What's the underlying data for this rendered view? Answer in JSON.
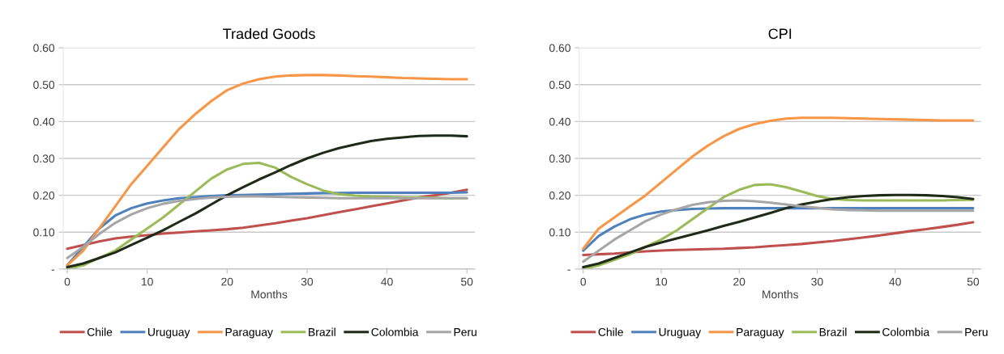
{
  "chart_data": [
    {
      "type": "line",
      "title": "Traded Goods",
      "xlabel": "Months",
      "x": [
        0,
        2,
        4,
        6,
        8,
        10,
        12,
        14,
        16,
        18,
        20,
        22,
        24,
        26,
        28,
        30,
        32,
        34,
        36,
        38,
        40,
        42,
        44,
        46,
        48,
        50
      ],
      "xlim": [
        -0.5,
        51
      ],
      "xticks": [
        0,
        10,
        20,
        30,
        40,
        50
      ],
      "ylim": [
        0,
        0.6
      ],
      "yticks": [
        {
          "value": 0,
          "label": "-"
        },
        {
          "value": 0.1,
          "label": "0.10"
        },
        {
          "value": 0.2,
          "label": "0.20"
        },
        {
          "value": 0.3,
          "label": "0.30"
        },
        {
          "value": 0.4,
          "label": "0.40"
        },
        {
          "value": 0.5,
          "label": "0.50"
        },
        {
          "value": 0.6,
          "label": "0.60"
        }
      ],
      "grid": "y",
      "legend": "bottom",
      "marker": "none",
      "line_style": "solid",
      "series": [
        {
          "name": "Chile",
          "color": "#c0504d",
          "values": [
            0.055,
            0.065,
            0.075,
            0.083,
            0.088,
            0.092,
            0.096,
            0.099,
            0.102,
            0.105,
            0.108,
            0.112,
            0.118,
            0.124,
            0.131,
            0.138,
            0.146,
            0.154,
            0.162,
            0.17,
            0.178,
            0.186,
            0.194,
            0.2,
            0.207,
            0.215
          ]
        },
        {
          "name": "Uruguay",
          "color": "#4f81bd",
          "values": [
            0.01,
            0.06,
            0.11,
            0.145,
            0.165,
            0.178,
            0.186,
            0.192,
            0.195,
            0.198,
            0.2,
            0.201,
            0.202,
            0.203,
            0.204,
            0.205,
            0.206,
            0.206,
            0.207,
            0.207,
            0.207,
            0.207,
            0.207,
            0.207,
            0.207,
            0.208
          ]
        },
        {
          "name": "Paraguay",
          "color": "#f79646",
          "values": [
            0.01,
            0.05,
            0.11,
            0.17,
            0.23,
            0.28,
            0.33,
            0.38,
            0.42,
            0.455,
            0.485,
            0.503,
            0.515,
            0.522,
            0.525,
            0.526,
            0.526,
            0.525,
            0.523,
            0.522,
            0.52,
            0.518,
            0.517,
            0.516,
            0.515,
            0.515
          ]
        },
        {
          "name": "Brazil",
          "color": "#9bbb59",
          "values": [
            0.0,
            0.01,
            0.03,
            0.05,
            0.08,
            0.11,
            0.14,
            0.175,
            0.21,
            0.245,
            0.27,
            0.285,
            0.288,
            0.275,
            0.25,
            0.23,
            0.213,
            0.203,
            0.199,
            0.197,
            0.196,
            0.195,
            0.194,
            0.193,
            0.192,
            0.192
          ]
        },
        {
          "name": "Colombia",
          "color": "#1f2a18",
          "values": [
            0.005,
            0.015,
            0.03,
            0.045,
            0.065,
            0.085,
            0.105,
            0.128,
            0.15,
            0.175,
            0.2,
            0.222,
            0.243,
            0.262,
            0.282,
            0.3,
            0.315,
            0.328,
            0.338,
            0.347,
            0.353,
            0.357,
            0.361,
            0.362,
            0.362,
            0.36
          ]
        },
        {
          "name": "Peru",
          "color": "#a6a6a6",
          "values": [
            0.03,
            0.06,
            0.095,
            0.125,
            0.148,
            0.165,
            0.177,
            0.185,
            0.19,
            0.194,
            0.196,
            0.197,
            0.197,
            0.196,
            0.195,
            0.194,
            0.193,
            0.192,
            0.192,
            0.192,
            0.192,
            0.192,
            0.192,
            0.192,
            0.192,
            0.192
          ]
        }
      ]
    },
    {
      "type": "line",
      "title": "CPI",
      "xlabel": "Months",
      "x": [
        0,
        2,
        4,
        6,
        8,
        10,
        12,
        14,
        16,
        18,
        20,
        22,
        24,
        26,
        28,
        30,
        32,
        34,
        36,
        38,
        40,
        42,
        44,
        46,
        48,
        50
      ],
      "xlim": [
        -0.5,
        51
      ],
      "xticks": [
        0,
        10,
        20,
        30,
        40,
        50
      ],
      "ylim": [
        0,
        0.6
      ],
      "yticks": [
        {
          "value": 0,
          "label": "-"
        },
        {
          "value": 0.1,
          "label": "0.10"
        },
        {
          "value": 0.2,
          "label": "0.20"
        },
        {
          "value": 0.3,
          "label": "0.30"
        },
        {
          "value": 0.4,
          "label": "0.40"
        },
        {
          "value": 0.5,
          "label": "0.50"
        },
        {
          "value": 0.6,
          "label": "0.60"
        }
      ],
      "grid": "y",
      "legend": "bottom",
      "marker": "none",
      "line_style": "solid",
      "series": [
        {
          "name": "Chile",
          "color": "#c0504d",
          "values": [
            0.038,
            0.04,
            0.042,
            0.045,
            0.048,
            0.05,
            0.052,
            0.053,
            0.054,
            0.055,
            0.057,
            0.059,
            0.062,
            0.065,
            0.068,
            0.072,
            0.076,
            0.081,
            0.086,
            0.091,
            0.097,
            0.103,
            0.108,
            0.114,
            0.12,
            0.127
          ]
        },
        {
          "name": "Uruguay",
          "color": "#4f81bd",
          "values": [
            0.05,
            0.09,
            0.115,
            0.135,
            0.148,
            0.156,
            0.16,
            0.163,
            0.164,
            0.165,
            0.165,
            0.165,
            0.165,
            0.165,
            0.165,
            0.165,
            0.165,
            0.165,
            0.165,
            0.165,
            0.165,
            0.165,
            0.165,
            0.165,
            0.165,
            0.165
          ]
        },
        {
          "name": "Paraguay",
          "color": "#f79646",
          "values": [
            0.055,
            0.11,
            0.14,
            0.17,
            0.2,
            0.235,
            0.27,
            0.305,
            0.335,
            0.36,
            0.38,
            0.393,
            0.402,
            0.408,
            0.41,
            0.41,
            0.41,
            0.409,
            0.408,
            0.407,
            0.406,
            0.405,
            0.404,
            0.403,
            0.403,
            0.403
          ]
        },
        {
          "name": "Brazil",
          "color": "#9bbb59",
          "values": [
            0.0,
            0.01,
            0.025,
            0.04,
            0.06,
            0.08,
            0.105,
            0.135,
            0.165,
            0.195,
            0.215,
            0.228,
            0.23,
            0.222,
            0.21,
            0.198,
            0.19,
            0.187,
            0.186,
            0.186,
            0.186,
            0.186,
            0.186,
            0.186,
            0.187,
            0.188
          ]
        },
        {
          "name": "Colombia",
          "color": "#1f2a18",
          "values": [
            0.005,
            0.015,
            0.03,
            0.045,
            0.06,
            0.072,
            0.083,
            0.094,
            0.105,
            0.117,
            0.128,
            0.14,
            0.152,
            0.165,
            0.175,
            0.183,
            0.19,
            0.195,
            0.198,
            0.2,
            0.201,
            0.201,
            0.2,
            0.198,
            0.195,
            0.19
          ]
        },
        {
          "name": "Peru",
          "color": "#a6a6a6",
          "values": [
            0.02,
            0.05,
            0.08,
            0.105,
            0.13,
            0.148,
            0.162,
            0.174,
            0.181,
            0.185,
            0.186,
            0.184,
            0.18,
            0.175,
            0.17,
            0.166,
            0.162,
            0.16,
            0.159,
            0.158,
            0.158,
            0.158,
            0.158,
            0.158,
            0.158,
            0.158
          ]
        }
      ]
    }
  ]
}
